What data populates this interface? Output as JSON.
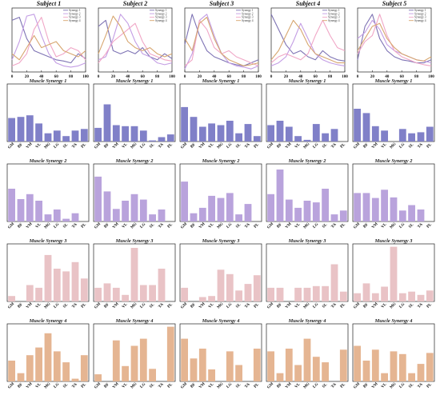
{
  "colors": {
    "syn1": "#8080c8",
    "syn2": "#b9a3dc",
    "syn3": "#e9c3c6",
    "syn4": "#e5b592",
    "line_syn1": "#7e73b4",
    "line_syn2": "#c39de4",
    "line_syn3": "#f0a6c6",
    "line_syn4": "#d7a66f"
  },
  "chart_data": {
    "type": "figure-grid",
    "subjects": [
      "Subject 1",
      "Subject 2",
      "Subject 3",
      "Subject 4",
      "Subject 5"
    ],
    "row_titles": [
      "Muscle Synergy 1",
      "Muscle Synergy 2",
      "Muscle Synergy 3",
      "Muscle Synergy 4"
    ],
    "muscles": [
      "GM",
      "BF",
      "VM",
      "VL",
      "MG",
      "LG",
      "SL",
      "TA",
      "PL"
    ],
    "line_x_ticks": [
      "0",
      "20",
      "40",
      "60",
      "80",
      "100"
    ],
    "legend_labels": [
      "Synergy 1",
      "Synergy 2",
      "Synergy 3",
      "Synergy 4"
    ],
    "line_panels": [
      {
        "subject": "Subject 1",
        "x": [
          0,
          10,
          20,
          30,
          40,
          50,
          60,
          70,
          80,
          90,
          100
        ],
        "series": [
          {
            "name": "Synergy 1",
            "values": [
              0.85,
              0.9,
              0.55,
              0.35,
              0.3,
              0.25,
              0.2,
              0.18,
              0.15,
              0.3,
              0.22
            ]
          },
          {
            "name": "Synergy 2",
            "values": [
              0.2,
              0.5,
              0.92,
              0.95,
              0.6,
              0.3,
              0.15,
              0.1,
              0.08,
              0.1,
              0.15
            ]
          },
          {
            "name": "Synergy 3",
            "values": [
              0.1,
              0.15,
              0.3,
              0.7,
              0.9,
              0.5,
              0.25,
              0.3,
              0.4,
              0.35,
              0.2
            ]
          },
          {
            "name": "Synergy 4",
            "values": [
              0.3,
              0.2,
              0.4,
              0.6,
              0.4,
              0.45,
              0.5,
              0.35,
              0.3,
              0.25,
              0.35
            ]
          }
        ]
      },
      {
        "subject": "Subject 2",
        "x": [
          0,
          10,
          20,
          30,
          40,
          50,
          60,
          70,
          80,
          90,
          100
        ],
        "series": [
          {
            "name": "Synergy 1",
            "values": [
              0.75,
              0.85,
              0.35,
              0.3,
              0.35,
              0.3,
              0.4,
              0.25,
              0.2,
              0.3,
              0.22
            ]
          },
          {
            "name": "Synergy 2",
            "values": [
              0.2,
              0.25,
              0.55,
              0.95,
              0.8,
              0.5,
              0.3,
              0.25,
              0.15,
              0.12,
              0.15
            ]
          },
          {
            "name": "Synergy 3",
            "values": [
              0.15,
              0.3,
              0.5,
              0.6,
              0.7,
              0.8,
              0.5,
              0.3,
              0.25,
              0.2,
              0.18
            ]
          },
          {
            "name": "Synergy 4",
            "values": [
              0.3,
              0.6,
              0.92,
              0.75,
              0.5,
              0.4,
              0.35,
              0.4,
              0.3,
              0.25,
              0.3
            ]
          }
        ]
      },
      {
        "subject": "Subject 3",
        "x": [
          0,
          10,
          20,
          30,
          40,
          50,
          60,
          70,
          80,
          90,
          100
        ],
        "series": [
          {
            "name": "Synergy 1",
            "values": [
              0.45,
              0.95,
              0.6,
              0.35,
              0.25,
              0.2,
              0.15,
              0.12,
              0.1,
              0.15,
              0.2
            ]
          },
          {
            "name": "Synergy 2",
            "values": [
              0.05,
              0.3,
              0.85,
              0.95,
              0.6,
              0.3,
              0.15,
              0.1,
              0.08,
              0.05,
              0.1
            ]
          },
          {
            "name": "Synergy 3",
            "values": [
              0.1,
              0.2,
              0.85,
              0.7,
              0.4,
              0.3,
              0.35,
              0.25,
              0.2,
              0.15,
              0.1
            ]
          },
          {
            "name": "Synergy 4",
            "values": [
              0.55,
              0.35,
              0.8,
              0.9,
              0.55,
              0.3,
              0.2,
              0.15,
              0.1,
              0.12,
              0.15
            ]
          }
        ]
      },
      {
        "subject": "Subject 4",
        "x": [
          0,
          10,
          20,
          30,
          40,
          50,
          60,
          70,
          80,
          90,
          100
        ],
        "series": [
          {
            "name": "Synergy 1",
            "values": [
              0.95,
              0.7,
              0.45,
              0.3,
              0.35,
              0.25,
              0.2,
              0.35,
              0.25,
              0.2,
              0.18
            ]
          },
          {
            "name": "Synergy 2",
            "values": [
              0.1,
              0.15,
              0.25,
              0.5,
              0.8,
              0.55,
              0.3,
              0.2,
              0.15,
              0.12,
              0.1
            ]
          },
          {
            "name": "Synergy 3",
            "values": [
              0.15,
              0.25,
              0.3,
              0.25,
              0.2,
              0.3,
              0.6,
              0.85,
              0.6,
              0.4,
              0.35
            ]
          },
          {
            "name": "Synergy 4",
            "values": [
              0.2,
              0.35,
              0.6,
              0.85,
              0.7,
              0.45,
              0.3,
              0.25,
              0.2,
              0.15,
              0.15
            ]
          }
        ]
      },
      {
        "subject": "Subject 5",
        "x": [
          0,
          10,
          20,
          30,
          40,
          50,
          60,
          70,
          80,
          90,
          100
        ],
        "series": [
          {
            "name": "Synergy 1",
            "values": [
              0.2,
              0.75,
              0.95,
              0.55,
              0.35,
              0.25,
              0.2,
              0.18,
              0.15,
              0.15,
              0.2
            ]
          },
          {
            "name": "Synergy 2",
            "values": [
              0.55,
              0.65,
              0.85,
              0.7,
              0.45,
              0.35,
              0.3,
              0.25,
              0.2,
              0.18,
              0.15
            ]
          },
          {
            "name": "Synergy 3",
            "values": [
              0.3,
              0.5,
              0.6,
              0.95,
              0.6,
              0.35,
              0.25,
              0.2,
              0.15,
              0.12,
              0.1
            ]
          },
          {
            "name": "Synergy 4",
            "values": [
              0.35,
              0.55,
              0.75,
              0.8,
              0.55,
              0.4,
              0.3,
              0.25,
              0.2,
              0.18,
              0.25
            ]
          }
        ]
      }
    ],
    "bar_panels": [
      [
        {
          "title": "Muscle Synergy 1",
          "values": [
            0.43,
            0.45,
            0.48,
            0.33,
            0.15,
            0.2,
            0.1,
            0.2,
            0.23
          ]
        },
        {
          "title": "Muscle Synergy 1",
          "values": [
            0.25,
            0.68,
            0.3,
            0.28,
            0.28,
            0.2,
            0.02,
            0.08,
            0.13
          ]
        },
        {
          "title": "Muscle Synergy 1",
          "values": [
            0.63,
            0.45,
            0.27,
            0.33,
            0.3,
            0.38,
            0.15,
            0.32,
            0.1
          ]
        },
        {
          "title": "Muscle Synergy 1",
          "values": [
            0.3,
            0.38,
            0.27,
            0.1,
            0.03,
            0.32,
            0.15,
            0.23,
            0.0
          ]
        },
        {
          "title": "Muscle Synergy 1",
          "values": [
            0.6,
            0.52,
            0.28,
            0.2,
            0.0,
            0.23,
            0.15,
            0.17,
            0.27
          ]
        }
      ],
      [
        {
          "title": "Muscle Synergy 2",
          "values": [
            0.6,
            0.41,
            0.5,
            0.38,
            0.13,
            0.22,
            0.05,
            0.15,
            0.0
          ]
        },
        {
          "title": "Muscle Synergy 2",
          "values": [
            0.82,
            0.55,
            0.23,
            0.38,
            0.5,
            0.4,
            0.13,
            0.22,
            0.0
          ]
        },
        {
          "title": "Muscle Synergy 2",
          "values": [
            0.73,
            0.15,
            0.25,
            0.47,
            0.43,
            0.52,
            0.13,
            0.32,
            0.0
          ]
        },
        {
          "title": "Muscle Synergy 2",
          "values": [
            0.5,
            0.95,
            0.4,
            0.25,
            0.38,
            0.35,
            0.6,
            0.13,
            0.2
          ]
        },
        {
          "title": "Muscle Synergy 2",
          "values": [
            0.52,
            0.52,
            0.43,
            0.58,
            0.44,
            0.2,
            0.3,
            0.22,
            0.0
          ]
        }
      ],
      [
        {
          "title": "Muscle Synergy 3",
          "values": [
            0.1,
            0.0,
            0.3,
            0.25,
            0.85,
            0.6,
            0.55,
            0.72,
            0.42
          ]
        },
        {
          "title": "Muscle Synergy 3",
          "values": [
            0.25,
            0.33,
            0.25,
            0.12,
            0.98,
            0.3,
            0.3,
            0.6,
            0.0
          ]
        },
        {
          "title": "Muscle Synergy 3",
          "values": [
            0.25,
            0.0,
            0.08,
            0.1,
            0.58,
            0.5,
            0.2,
            0.32,
            0.48
          ]
        },
        {
          "title": "Muscle Synergy 3",
          "values": [
            0.25,
            0.25,
            0.0,
            0.25,
            0.25,
            0.28,
            0.28,
            0.68,
            0.18
          ]
        },
        {
          "title": "Muscle Synergy 3",
          "values": [
            0.15,
            0.33,
            0.15,
            0.27,
            1.0,
            0.15,
            0.18,
            0.12,
            0.2
          ]
        }
      ],
      [
        {
          "title": "Muscle Synergy 4",
          "values": [
            0.38,
            0.15,
            0.48,
            0.62,
            0.88,
            0.55,
            0.35,
            0.05,
            0.48
          ]
        },
        {
          "title": "Muscle Synergy 4",
          "values": [
            0.13,
            0.0,
            0.75,
            0.28,
            0.65,
            0.78,
            0.23,
            0.0,
            1.0
          ]
        },
        {
          "title": "Muscle Synergy 4",
          "values": [
            0.78,
            0.42,
            0.6,
            0.22,
            0.0,
            0.55,
            0.3,
            0.0,
            0.6
          ]
        },
        {
          "title": "Muscle Synergy 4",
          "values": [
            0.55,
            0.15,
            0.6,
            0.3,
            0.78,
            0.45,
            0.35,
            0.0,
            0.58
          ]
        },
        {
          "title": "Muscle Synergy 4",
          "values": [
            0.65,
            0.38,
            0.58,
            0.15,
            0.55,
            0.5,
            0.15,
            0.32,
            0.52
          ]
        }
      ]
    ],
    "ylim": [
      0,
      1
    ],
    "grid": false
  }
}
